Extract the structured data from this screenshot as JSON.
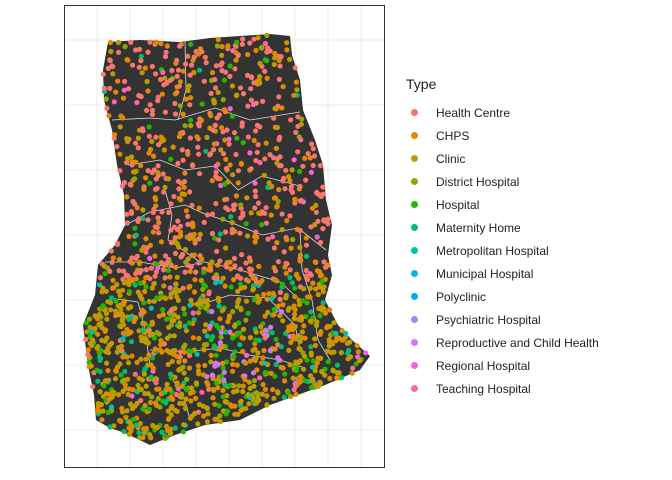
{
  "legend": {
    "title": "Type",
    "items": [
      {
        "label": "Health Centre",
        "color": "#F8766D"
      },
      {
        "label": "CHPS",
        "color": "#E18A00"
      },
      {
        "label": "Clinic",
        "color": "#BE9C00"
      },
      {
        "label": "District Hospital",
        "color": "#8CAB00"
      },
      {
        "label": "Hospital",
        "color": "#24B700"
      },
      {
        "label": "Maternity Home",
        "color": "#00BE70"
      },
      {
        "label": "Metropolitan Hospital",
        "color": "#00C1AB"
      },
      {
        "label": "Municipal Hospital",
        "color": "#00BBDA"
      },
      {
        "label": "Polyclinic",
        "color": "#00ACFC"
      },
      {
        "label": "Psychiatric Hospital",
        "color": "#8B93FF"
      },
      {
        "label": "Reproductive and Child Health",
        "color": "#D575FE"
      },
      {
        "label": "Regional Hospital",
        "color": "#F962DD"
      },
      {
        "label": "Teaching Hospital",
        "color": "#FF65AC"
      }
    ]
  },
  "colors": {
    "land": "#333333",
    "borders": "#dddddd",
    "grid": "#ebebeb",
    "panel_border": "#333333"
  }
}
